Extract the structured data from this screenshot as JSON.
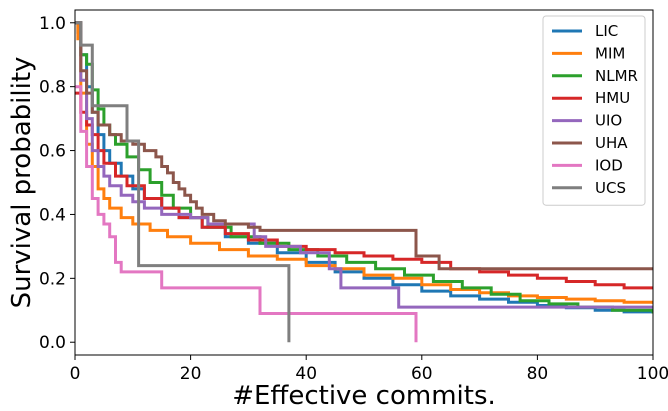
{
  "chart_data": {
    "type": "line",
    "step": true,
    "xlabel": "#Effective commits.",
    "ylabel": "Survival probability",
    "xlim": [
      0,
      100
    ],
    "ylim": [
      -0.04,
      1.04
    ],
    "xticks": [
      0,
      20,
      40,
      60,
      80,
      100
    ],
    "yticks": [
      0.0,
      0.2,
      0.4,
      0.6,
      0.8,
      1.0
    ],
    "xtick_labels": [
      "0",
      "20",
      "40",
      "60",
      "80",
      "100"
    ],
    "ytick_labels": [
      "0.0",
      "0.2",
      "0.4",
      "0.6",
      "0.8",
      "1.0"
    ],
    "grid": false,
    "legend_position": "top-right",
    "series": [
      {
        "name": "LIC",
        "color": "#1f77b4",
        "points": [
          [
            0,
            1.0
          ],
          [
            0.5,
            0.97
          ],
          [
            1,
            0.9
          ],
          [
            2,
            0.8
          ],
          [
            3,
            0.72
          ],
          [
            4,
            0.65
          ],
          [
            5,
            0.6
          ],
          [
            6,
            0.56
          ],
          [
            8,
            0.52
          ],
          [
            10,
            0.48
          ],
          [
            12,
            0.45
          ],
          [
            15,
            0.42
          ],
          [
            18,
            0.39
          ],
          [
            22,
            0.36
          ],
          [
            26,
            0.33
          ],
          [
            30,
            0.31
          ],
          [
            35,
            0.28
          ],
          [
            40,
            0.25
          ],
          [
            45,
            0.22
          ],
          [
            50,
            0.2
          ],
          [
            55,
            0.18
          ],
          [
            60,
            0.16
          ],
          [
            65,
            0.145
          ],
          [
            70,
            0.135
          ],
          [
            75,
            0.125
          ],
          [
            80,
            0.115
          ],
          [
            85,
            0.108
          ],
          [
            90,
            0.1
          ],
          [
            95,
            0.095
          ],
          [
            100,
            0.09
          ]
        ]
      },
      {
        "name": "MIM",
        "color": "#ff7f0e",
        "points": [
          [
            0,
            1.0
          ],
          [
            0.5,
            0.95
          ],
          [
            1,
            0.78
          ],
          [
            2,
            0.62
          ],
          [
            3,
            0.55
          ],
          [
            4,
            0.48
          ],
          [
            5,
            0.45
          ],
          [
            6,
            0.42
          ],
          [
            8,
            0.39
          ],
          [
            10,
            0.37
          ],
          [
            13,
            0.35
          ],
          [
            16,
            0.33
          ],
          [
            20,
            0.31
          ],
          [
            25,
            0.29
          ],
          [
            30,
            0.27
          ],
          [
            35,
            0.26
          ],
          [
            40,
            0.24
          ],
          [
            45,
            0.23
          ],
          [
            50,
            0.21
          ],
          [
            55,
            0.2
          ],
          [
            60,
            0.18
          ],
          [
            65,
            0.165
          ],
          [
            70,
            0.155
          ],
          [
            75,
            0.145
          ],
          [
            80,
            0.14
          ],
          [
            85,
            0.135
          ],
          [
            90,
            0.13
          ],
          [
            95,
            0.125
          ],
          [
            100,
            0.12
          ]
        ]
      },
      {
        "name": "NLMR",
        "color": "#2ca02c",
        "points": [
          [
            0,
            1.0
          ],
          [
            1,
            0.9
          ],
          [
            2,
            0.87
          ],
          [
            3,
            0.79
          ],
          [
            4,
            0.73
          ],
          [
            5,
            0.68
          ],
          [
            6,
            0.65
          ],
          [
            7,
            0.62
          ],
          [
            9,
            0.58
          ],
          [
            11,
            0.54
          ],
          [
            13,
            0.5
          ],
          [
            15,
            0.46
          ],
          [
            17,
            0.42
          ],
          [
            20,
            0.39
          ],
          [
            23,
            0.36
          ],
          [
            27,
            0.33
          ],
          [
            32,
            0.31
          ],
          [
            37,
            0.29
          ],
          [
            42,
            0.27
          ],
          [
            47,
            0.25
          ],
          [
            52,
            0.23
          ],
          [
            57,
            0.21
          ],
          [
            62,
            0.19
          ],
          [
            67,
            0.17
          ],
          [
            72,
            0.15
          ],
          [
            77,
            0.13
          ],
          [
            82,
            0.12
          ],
          [
            87,
            0.11
          ],
          [
            93,
            0.1
          ],
          [
            100,
            0.09
          ]
        ]
      },
      {
        "name": "HMU",
        "color": "#d62728",
        "points": [
          [
            0,
            0.78
          ],
          [
            1,
            0.72
          ],
          [
            2,
            0.68
          ],
          [
            3,
            0.65
          ],
          [
            4,
            0.6
          ],
          [
            5,
            0.56
          ],
          [
            7,
            0.52
          ],
          [
            9,
            0.49
          ],
          [
            12,
            0.45
          ],
          [
            15,
            0.42
          ],
          [
            18,
            0.39
          ],
          [
            22,
            0.36
          ],
          [
            26,
            0.34
          ],
          [
            30,
            0.32
          ],
          [
            35,
            0.3
          ],
          [
            40,
            0.29
          ],
          [
            45,
            0.28
          ],
          [
            50,
            0.27
          ],
          [
            55,
            0.26
          ],
          [
            60,
            0.25
          ],
          [
            65,
            0.23
          ],
          [
            70,
            0.22
          ],
          [
            75,
            0.21
          ],
          [
            80,
            0.2
          ],
          [
            85,
            0.19
          ],
          [
            90,
            0.18
          ],
          [
            95,
            0.17
          ],
          [
            100,
            0.17
          ]
        ]
      },
      {
        "name": "UIO",
        "color": "#9467bd",
        "points": [
          [
            0,
            1.0
          ],
          [
            1,
            0.82
          ],
          [
            2,
            0.7
          ],
          [
            3,
            0.6
          ],
          [
            4,
            0.55
          ],
          [
            5,
            0.52
          ],
          [
            6,
            0.49
          ],
          [
            8,
            0.46
          ],
          [
            10,
            0.44
          ],
          [
            12,
            0.42
          ],
          [
            15,
            0.4
          ],
          [
            20,
            0.39
          ],
          [
            23,
            0.37
          ],
          [
            31,
            0.33
          ],
          [
            33,
            0.3
          ],
          [
            39,
            0.28
          ],
          [
            44,
            0.23
          ],
          [
            46,
            0.17
          ],
          [
            56,
            0.11
          ],
          [
            70,
            0.11
          ],
          [
            100,
            0.11
          ]
        ]
      },
      {
        "name": "UHA",
        "color": "#8c564b",
        "points": [
          [
            0,
            1.0
          ],
          [
            1,
            0.85
          ],
          [
            2,
            0.78
          ],
          [
            3,
            0.72
          ],
          [
            4,
            0.68
          ],
          [
            6,
            0.65
          ],
          [
            8,
            0.63
          ],
          [
            10,
            0.62
          ],
          [
            12,
            0.6
          ],
          [
            14,
            0.58
          ],
          [
            15,
            0.55
          ],
          [
            16,
            0.53
          ],
          [
            17,
            0.5
          ],
          [
            18,
            0.48
          ],
          [
            19,
            0.46
          ],
          [
            20,
            0.44
          ],
          [
            21,
            0.42
          ],
          [
            22,
            0.4
          ],
          [
            24,
            0.38
          ],
          [
            26,
            0.37
          ],
          [
            30,
            0.36
          ],
          [
            32,
            0.35
          ],
          [
            59,
            0.27
          ],
          [
            63,
            0.23
          ],
          [
            100,
            0.23
          ]
        ]
      },
      {
        "name": "IOD",
        "color": "#e377c2",
        "points": [
          [
            0,
            0.8
          ],
          [
            1,
            0.66
          ],
          [
            2,
            0.55
          ],
          [
            3,
            0.45
          ],
          [
            4,
            0.4
          ],
          [
            5,
            0.37
          ],
          [
            6,
            0.33
          ],
          [
            7,
            0.25
          ],
          [
            8,
            0.22
          ],
          [
            15,
            0.17
          ],
          [
            32,
            0.09
          ],
          [
            59,
            0.0
          ]
        ]
      },
      {
        "name": "UCS",
        "color": "#7f7f7f",
        "points": [
          [
            0,
            1.0
          ],
          [
            1,
            0.93
          ],
          [
            3,
            0.74
          ],
          [
            9,
            0.63
          ],
          [
            11,
            0.24
          ],
          [
            37,
            0.0
          ]
        ]
      }
    ]
  }
}
